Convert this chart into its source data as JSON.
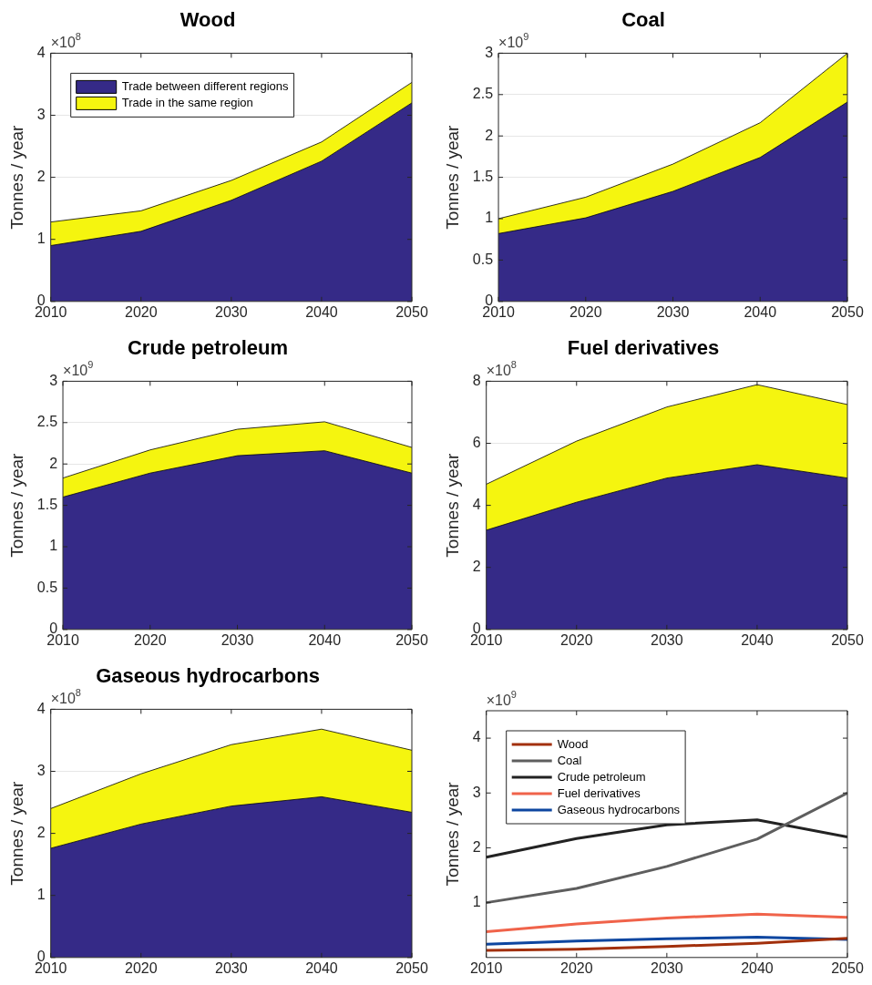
{
  "chart_data": [
    {
      "type": "area",
      "title": "Wood",
      "ylabel": "Tonnes / year",
      "annotations": [
        "×10$^{8}$"
      ],
      "stacked": true,
      "grid": "y",
      "legend": "top left",
      "marker": "none",
      "x": [
        2010,
        2020,
        2030,
        2040,
        2050
      ],
      "xlim": [
        2010,
        2050
      ],
      "xticks": [
        2010,
        2020,
        2030,
        2040,
        2050
      ],
      "ylim": [
        0,
        4
      ],
      "yticks": [
        0,
        1,
        2,
        3,
        4
      ],
      "series": [
        {
          "name": "Trade between different regions",
          "color": "#352a87",
          "values": [
            0.9,
            1.13,
            1.63,
            2.26,
            3.2
          ]
        },
        {
          "name": "Trade in the same region",
          "color": "#f5f50f",
          "values": [
            0.38,
            0.33,
            0.32,
            0.31,
            0.33
          ]
        }
      ]
    },
    {
      "type": "area",
      "title": "Coal",
      "ylabel": "Tonnes / year",
      "annotations": [
        "×10$^{9}$"
      ],
      "stacked": true,
      "grid": "y",
      "marker": "none",
      "x": [
        2010,
        2020,
        2030,
        2040,
        2050
      ],
      "xlim": [
        2010,
        2050
      ],
      "xticks": [
        2010,
        2020,
        2030,
        2040,
        2050
      ],
      "ylim": [
        0,
        3
      ],
      "yticks": [
        0,
        0.5,
        1,
        1.5,
        2,
        2.5,
        3
      ],
      "series": [
        {
          "color": "#352a87",
          "values": [
            0.82,
            1.01,
            1.33,
            1.74,
            2.41
          ]
        },
        {
          "color": "#f5f50f",
          "values": [
            0.18,
            0.25,
            0.33,
            0.42,
            0.59
          ]
        }
      ]
    },
    {
      "type": "area",
      "title": "Crude petroleum",
      "ylabel": "Tonnes / year",
      "annotations": [
        "×10$^{9}$"
      ],
      "stacked": true,
      "grid": "y",
      "marker": "none",
      "x": [
        2010,
        2020,
        2030,
        2040,
        2050
      ],
      "xlim": [
        2010,
        2050
      ],
      "xticks": [
        2010,
        2020,
        2030,
        2040,
        2050
      ],
      "ylim": [
        0,
        3
      ],
      "yticks": [
        0,
        0.5,
        1,
        1.5,
        2,
        2.5,
        3
      ],
      "series": [
        {
          "color": "#352a87",
          "values": [
            1.6,
            1.89,
            2.1,
            2.16,
            1.89
          ]
        },
        {
          "color": "#f5f50f",
          "values": [
            0.23,
            0.28,
            0.32,
            0.35,
            0.31
          ]
        }
      ]
    },
    {
      "type": "area",
      "title": "Fuel derivatives",
      "ylabel": "Tonnes / year",
      "annotations": [
        "×10$^{8}$"
      ],
      "stacked": true,
      "grid": "y",
      "marker": "none",
      "x": [
        2010,
        2020,
        2030,
        2040,
        2050
      ],
      "xlim": [
        2010,
        2050
      ],
      "xticks": [
        2010,
        2020,
        2030,
        2040,
        2050
      ],
      "ylim": [
        0,
        8
      ],
      "yticks": [
        0,
        2,
        4,
        6,
        8
      ],
      "series": [
        {
          "color": "#352a87",
          "values": [
            3.2,
            4.1,
            4.88,
            5.31,
            4.88
          ]
        },
        {
          "color": "#f5f50f",
          "values": [
            1.48,
            1.97,
            2.29,
            2.58,
            2.37
          ]
        }
      ]
    },
    {
      "type": "area",
      "title": "Gaseous hydrocarbons",
      "ylabel": "Tonnes / year",
      "annotations": [
        "×10$^{8}$"
      ],
      "stacked": true,
      "grid": "y",
      "marker": "none",
      "x": [
        2010,
        2020,
        2030,
        2040,
        2050
      ],
      "xlim": [
        2010,
        2050
      ],
      "xticks": [
        2010,
        2020,
        2030,
        2040,
        2050
      ],
      "ylim": [
        0,
        4
      ],
      "yticks": [
        0,
        1,
        2,
        3,
        4
      ],
      "series": [
        {
          "color": "#352a87",
          "values": [
            1.76,
            2.15,
            2.44,
            2.59,
            2.34
          ]
        },
        {
          "color": "#f5f50f",
          "values": [
            0.64,
            0.81,
            0.99,
            1.09,
            1.0
          ]
        }
      ]
    },
    {
      "type": "line",
      "ylabel": "Tonnes / year",
      "annotations": [
        "×10$^{9}$"
      ],
      "legend": "top left",
      "marker": "none",
      "line_style": "solid",
      "x": [
        2010,
        2020,
        2030,
        2040,
        2050
      ],
      "xlim": [
        2010,
        2050
      ],
      "xticks": [
        2010,
        2020,
        2030,
        2040,
        2050
      ],
      "ylim": [
        0,
        4.5
      ],
      "yticks": [
        1,
        2,
        3,
        4
      ],
      "series": [
        {
          "name": "Wood",
          "color": "#a2300c",
          "values": [
            0.13,
            0.15,
            0.2,
            0.26,
            0.35
          ]
        },
        {
          "name": "Coal",
          "color": "#5e5e5e",
          "values": [
            1.0,
            1.26,
            1.66,
            2.16,
            3.0
          ]
        },
        {
          "name": "Crude petroleum",
          "color": "#222222",
          "values": [
            1.83,
            2.17,
            2.42,
            2.51,
            2.2
          ]
        },
        {
          "name": "Fuel derivatives",
          "color": "#f0634a",
          "values": [
            0.47,
            0.61,
            0.72,
            0.79,
            0.73
          ]
        },
        {
          "name": "Gaseous hydrocarbons",
          "color": "#0d46a0",
          "values": [
            0.24,
            0.3,
            0.34,
            0.37,
            0.33
          ]
        }
      ]
    }
  ]
}
